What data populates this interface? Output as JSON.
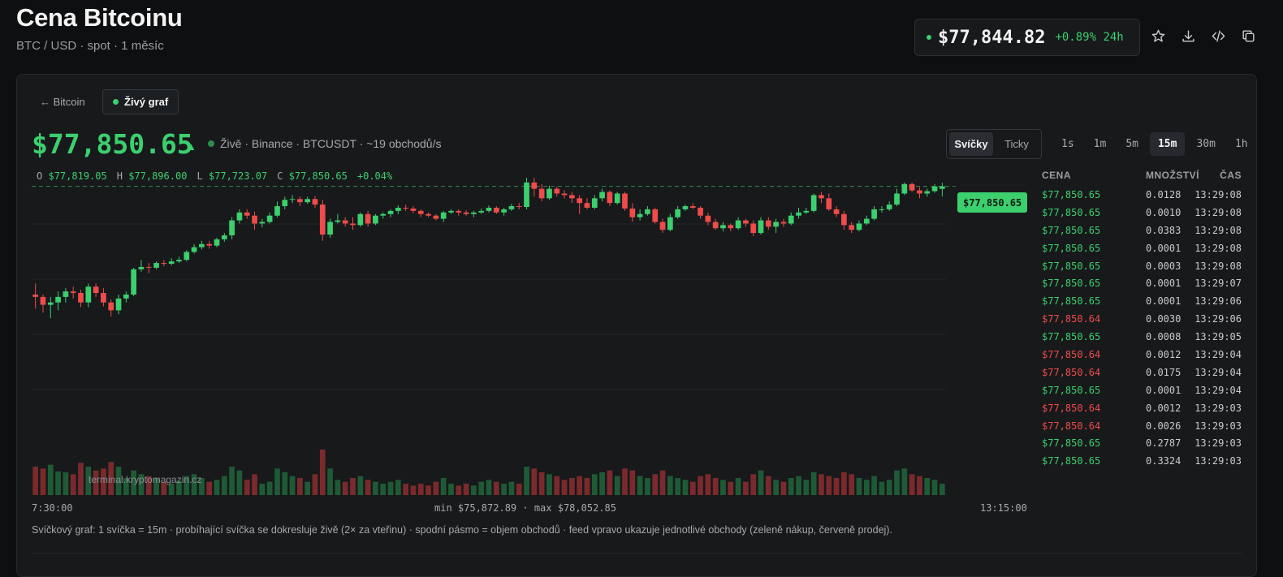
{
  "header": {
    "title": "Cena Bitcoinu",
    "subtitle": "BTC / USD · spot · 1 měsíc",
    "ticker_price": "$77,844.82",
    "ticker_change": "+0.89% 24h",
    "icons": [
      "star-icon",
      "download-icon",
      "code-icon",
      "copy-icon"
    ]
  },
  "panel": {
    "back_label": "← Bitcoin",
    "live_tab_label": "Živý graf",
    "big_price": "$77,850.65",
    "big_arrow": "▲",
    "live_info": "Živě · Binance · BTCUSDT · ~19 obchodů/s",
    "chart_modes": [
      "Svíčky",
      "Ticky"
    ],
    "active_mode": "Svíčky",
    "timeframes": [
      "1s",
      "1m",
      "5m",
      "15m",
      "30m",
      "1h"
    ],
    "active_timeframe": "15m",
    "ohlc": {
      "o_label": "O",
      "o": "$77,819.05",
      "h_label": "H",
      "h": "$77,896.00",
      "l_label": "L",
      "l": "$77,723.07",
      "c_label": "C",
      "c": "$77,850.65",
      "change": "+0.04%"
    },
    "price_tag": "$77,850.65",
    "watermark": "terminal.kryptomagazin.cz",
    "x_start": "7:30:00",
    "x_range": "min $75,872.89 · max $78,052.85",
    "x_end": "13:15:00",
    "footnote": "Svíčkový graf: 1 svíčka = 15m · probíhající svíčka se dokresluje živě (2× za vteřinu) · spodní pásmo = objem obchodů · feed vpravo ukazuje jednotlivé obchody (zeleně nákup, červeně prodej)."
  },
  "feed": {
    "headers": {
      "price": "CENA",
      "qty": "MNOŽSTVÍ",
      "time": "ČAS"
    },
    "rows": [
      {
        "price": "$77,850.65",
        "qty": "0.0128",
        "time": "13:29:08",
        "side": "buy"
      },
      {
        "price": "$77,850.65",
        "qty": "0.0010",
        "time": "13:29:08",
        "side": "buy"
      },
      {
        "price": "$77,850.65",
        "qty": "0.0383",
        "time": "13:29:08",
        "side": "buy"
      },
      {
        "price": "$77,850.65",
        "qty": "0.0001",
        "time": "13:29:08",
        "side": "buy"
      },
      {
        "price": "$77,850.65",
        "qty": "0.0003",
        "time": "13:29:08",
        "side": "buy"
      },
      {
        "price": "$77,850.65",
        "qty": "0.0001",
        "time": "13:29:07",
        "side": "buy"
      },
      {
        "price": "$77,850.65",
        "qty": "0.0001",
        "time": "13:29:06",
        "side": "buy"
      },
      {
        "price": "$77,850.64",
        "qty": "0.0030",
        "time": "13:29:06",
        "side": "sell"
      },
      {
        "price": "$77,850.65",
        "qty": "0.0008",
        "time": "13:29:05",
        "side": "buy"
      },
      {
        "price": "$77,850.64",
        "qty": "0.0012",
        "time": "13:29:04",
        "side": "sell"
      },
      {
        "price": "$77,850.64",
        "qty": "0.0175",
        "time": "13:29:04",
        "side": "sell"
      },
      {
        "price": "$77,850.65",
        "qty": "0.0001",
        "time": "13:29:04",
        "side": "buy"
      },
      {
        "price": "$77,850.64",
        "qty": "0.0012",
        "time": "13:29:03",
        "side": "sell"
      },
      {
        "price": "$77,850.64",
        "qty": "0.0026",
        "time": "13:29:03",
        "side": "sell"
      },
      {
        "price": "$77,850.65",
        "qty": "0.2787",
        "time": "13:29:03",
        "side": "buy"
      },
      {
        "price": "$77,850.65",
        "qty": "0.3324",
        "time": "13:29:03",
        "side": "buy"
      }
    ]
  },
  "colors": {
    "up": "#3ccf6e",
    "down": "#ef4b4b",
    "vol_up": "#1f5a36",
    "vol_down": "#7a2a2c"
  },
  "chart_data": {
    "type": "candlestick",
    "interval": "15m",
    "ylim": [
      75872.89,
      78052.85
    ],
    "last_price": 77850.65,
    "candles": [
      [
        76480,
        76450,
        76620,
        76300,
        30
      ],
      [
        76450,
        76350,
        76480,
        76250,
        28
      ],
      [
        76350,
        76380,
        76450,
        76180,
        32
      ],
      [
        76380,
        76450,
        76520,
        76280,
        25
      ],
      [
        76450,
        76520,
        76560,
        76380,
        24
      ],
      [
        76520,
        76500,
        76580,
        76430,
        22
      ],
      [
        76500,
        76380,
        76540,
        76320,
        34
      ],
      [
        76380,
        76580,
        76620,
        76320,
        30
      ],
      [
        76580,
        76500,
        76620,
        76450,
        26
      ],
      [
        76500,
        76380,
        76560,
        76330,
        28
      ],
      [
        76380,
        76280,
        76420,
        76200,
        35
      ],
      [
        76280,
        76430,
        76480,
        76230,
        30
      ],
      [
        76430,
        76480,
        76520,
        76380,
        18
      ],
      [
        76480,
        76800,
        76820,
        76460,
        26
      ],
      [
        76800,
        76830,
        76920,
        76770,
        22
      ],
      [
        76830,
        76820,
        76880,
        76750,
        20
      ],
      [
        76820,
        76880,
        76900,
        76800,
        18
      ],
      [
        76880,
        76870,
        76920,
        76840,
        14
      ],
      [
        76870,
        76900,
        76940,
        76850,
        12
      ],
      [
        76900,
        76920,
        76960,
        76880,
        15
      ],
      [
        76920,
        77020,
        77040,
        76900,
        20
      ],
      [
        77020,
        77080,
        77120,
        77000,
        22
      ],
      [
        77080,
        77120,
        77160,
        77050,
        18
      ],
      [
        77120,
        77100,
        77160,
        77060,
        14
      ],
      [
        77100,
        77180,
        77200,
        77080,
        16
      ],
      [
        77180,
        77230,
        77260,
        77150,
        20
      ],
      [
        77230,
        77420,
        77460,
        77180,
        30
      ],
      [
        77420,
        77520,
        77560,
        77380,
        26
      ],
      [
        77520,
        77480,
        77560,
        77440,
        16
      ],
      [
        77480,
        77380,
        77530,
        77300,
        22
      ],
      [
        77380,
        77400,
        77440,
        77330,
        12
      ],
      [
        77400,
        77480,
        77520,
        77380,
        14
      ],
      [
        77480,
        77600,
        77660,
        77460,
        28
      ],
      [
        77600,
        77680,
        77720,
        77560,
        24
      ],
      [
        77680,
        77690,
        77740,
        77640,
        20
      ],
      [
        77690,
        77650,
        77720,
        77600,
        18
      ],
      [
        77650,
        77690,
        77720,
        77630,
        14
      ],
      [
        77690,
        77620,
        77730,
        77580,
        22
      ],
      [
        77620,
        77240,
        77680,
        77160,
        48
      ],
      [
        77240,
        77400,
        77440,
        77200,
        28
      ],
      [
        77400,
        77420,
        77500,
        77380,
        16
      ],
      [
        77420,
        77380,
        77460,
        77340,
        14
      ],
      [
        77380,
        77360,
        77460,
        77300,
        18
      ],
      [
        77360,
        77500,
        77520,
        77340,
        20
      ],
      [
        77500,
        77380,
        77540,
        77340,
        16
      ],
      [
        77380,
        77480,
        77500,
        77360,
        14
      ],
      [
        77480,
        77500,
        77520,
        77440,
        12
      ],
      [
        77500,
        77540,
        77560,
        77460,
        14
      ],
      [
        77540,
        77580,
        77610,
        77500,
        16
      ],
      [
        77580,
        77570,
        77620,
        77540,
        12
      ],
      [
        77570,
        77540,
        77600,
        77510,
        10
      ],
      [
        77540,
        77500,
        77560,
        77460,
        12
      ],
      [
        77500,
        77480,
        77520,
        77460,
        10
      ],
      [
        77480,
        77440,
        77500,
        77420,
        14
      ],
      [
        77440,
        77520,
        77540,
        77400,
        18
      ],
      [
        77520,
        77540,
        77560,
        77500,
        12
      ],
      [
        77540,
        77520,
        77560,
        77480,
        10
      ],
      [
        77520,
        77500,
        77550,
        77480,
        12
      ],
      [
        77500,
        77520,
        77540,
        77460,
        10
      ],
      [
        77520,
        77540,
        77570,
        77500,
        14
      ],
      [
        77540,
        77580,
        77610,
        77520,
        16
      ],
      [
        77580,
        77520,
        77600,
        77500,
        14
      ],
      [
        77520,
        77560,
        77580,
        77480,
        12
      ],
      [
        77560,
        77600,
        77630,
        77540,
        14
      ],
      [
        77600,
        77590,
        77640,
        77560,
        12
      ],
      [
        77590,
        77900,
        77960,
        77560,
        30
      ],
      [
        77900,
        77820,
        77960,
        77720,
        28
      ],
      [
        77820,
        77700,
        77880,
        77660,
        24
      ],
      [
        77700,
        77820,
        77860,
        77680,
        22
      ],
      [
        77820,
        77760,
        77850,
        77720,
        20
      ],
      [
        77760,
        77740,
        77800,
        77700,
        16
      ],
      [
        77740,
        77700,
        77780,
        77640,
        18
      ],
      [
        77700,
        77640,
        77740,
        77500,
        20
      ],
      [
        77640,
        77580,
        77700,
        77560,
        18
      ],
      [
        77580,
        77700,
        77740,
        77560,
        22
      ],
      [
        77700,
        77780,
        77820,
        77660,
        24
      ],
      [
        77780,
        77640,
        77800,
        77600,
        26
      ],
      [
        77640,
        77760,
        77780,
        77620,
        20
      ],
      [
        77760,
        77570,
        77780,
        77540,
        28
      ],
      [
        77570,
        77460,
        77640,
        77400,
        26
      ],
      [
        77460,
        77500,
        77560,
        77420,
        20
      ],
      [
        77500,
        77560,
        77600,
        77480,
        18
      ],
      [
        77560,
        77400,
        77580,
        77380,
        22
      ],
      [
        77400,
        77300,
        77440,
        77260,
        26
      ],
      [
        77300,
        77460,
        77500,
        77280,
        20
      ],
      [
        77460,
        77560,
        77600,
        77440,
        18
      ],
      [
        77560,
        77600,
        77620,
        77540,
        16
      ],
      [
        77600,
        77580,
        77640,
        77560,
        14
      ],
      [
        77580,
        77480,
        77600,
        77440,
        20
      ],
      [
        77480,
        77400,
        77520,
        77360,
        22
      ],
      [
        77400,
        77320,
        77440,
        77300,
        18
      ],
      [
        77320,
        77360,
        77400,
        77280,
        16
      ],
      [
        77360,
        77320,
        77380,
        77280,
        14
      ],
      [
        77320,
        77420,
        77460,
        77300,
        18
      ],
      [
        77420,
        77380,
        77440,
        77340,
        14
      ],
      [
        77380,
        77260,
        77420,
        77220,
        22
      ],
      [
        77260,
        77420,
        77460,
        77240,
        26
      ],
      [
        77420,
        77340,
        77460,
        77300,
        20
      ],
      [
        77340,
        77400,
        77440,
        77260,
        16
      ],
      [
        77400,
        77380,
        77440,
        77340,
        14
      ],
      [
        77380,
        77480,
        77520,
        77360,
        18
      ],
      [
        77480,
        77520,
        77580,
        77440,
        20
      ],
      [
        77520,
        77540,
        77580,
        77500,
        16
      ],
      [
        77540,
        77740,
        77760,
        77520,
        24
      ],
      [
        77740,
        77700,
        77780,
        77640,
        22
      ],
      [
        77700,
        77560,
        77760,
        77540,
        20
      ],
      [
        77560,
        77500,
        77600,
        77460,
        18
      ],
      [
        77500,
        77360,
        77540,
        77300,
        24
      ],
      [
        77360,
        77300,
        77400,
        77260,
        22
      ],
      [
        77300,
        77380,
        77420,
        77280,
        18
      ],
      [
        77380,
        77440,
        77480,
        77360,
        16
      ],
      [
        77440,
        77560,
        77600,
        77420,
        20
      ],
      [
        77560,
        77560,
        77600,
        77520,
        14
      ],
      [
        77560,
        77620,
        77660,
        77540,
        16
      ],
      [
        77620,
        77760,
        77820,
        77600,
        26
      ],
      [
        77760,
        77880,
        77900,
        77740,
        28
      ],
      [
        77880,
        77800,
        77900,
        77780,
        22
      ],
      [
        77800,
        77760,
        77840,
        77700,
        20
      ],
      [
        77760,
        77790,
        77820,
        77720,
        18
      ],
      [
        77790,
        77850,
        77880,
        77770,
        16
      ],
      [
        77819.05,
        77850.65,
        77896,
        77723.07,
        12
      ]
    ]
  }
}
